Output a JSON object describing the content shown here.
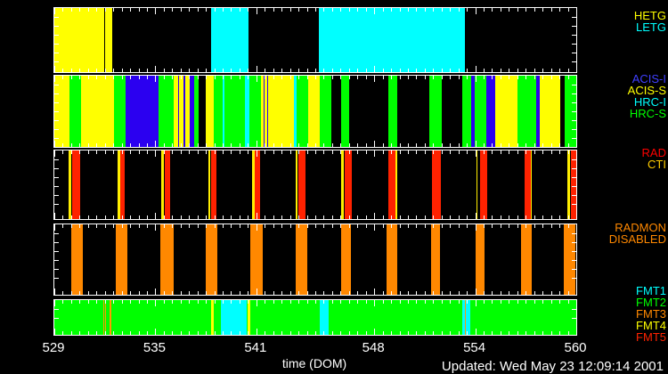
{
  "footer": {
    "updated": "Updated: Wed May 23 12:09:14 2001"
  },
  "chart_data": {
    "type": "timeline",
    "xlabel": "time (DOM)",
    "x_range": [
      529,
      560
    ],
    "x_ticks": [
      529,
      535,
      541,
      548,
      554,
      560
    ],
    "x_minor_tick_step": 0.5,
    "background": "#000000",
    "frame_color": "#ffffff",
    "bands": [
      {
        "name": "gratings",
        "labels": [
          {
            "text": "HETG",
            "color": "#ffff00"
          },
          {
            "text": "LETG",
            "color": "#00ffff"
          }
        ],
        "segments": [
          [
            529.0,
            531.97,
            "#ffff00",
            "HETG"
          ],
          [
            532.03,
            532.45,
            "#ffff00",
            "HETG"
          ],
          [
            538.33,
            540.55,
            "#00ffff",
            "LETG"
          ],
          [
            544.7,
            553.4,
            "#00ffff",
            "LETG"
          ]
        ]
      },
      {
        "name": "instruments",
        "labels": [
          {
            "text": "ACIS-I",
            "color": "#4040ff"
          },
          {
            "text": "ACIS-S",
            "color": "#ffff00"
          },
          {
            "text": "HRC-I",
            "color": "#00ffff"
          },
          {
            "text": "HRC-S",
            "color": "#00ff00"
          }
        ],
        "segments": [
          [
            529.0,
            529.9,
            "#ffff00",
            "ACIS-S"
          ],
          [
            529.9,
            530.59,
            "#00ff00",
            "HRC-S"
          ],
          [
            530.59,
            532.55,
            "#ffff00",
            "ACIS-S"
          ],
          [
            532.55,
            533.24,
            "#00ff00",
            "HRC-S"
          ],
          [
            533.24,
            535.2,
            "#2b00f0",
            "ACIS-I"
          ],
          [
            535.2,
            536.1,
            "#00ff00",
            "HRC-S"
          ],
          [
            536.1,
            536.37,
            "#ffff00",
            "ACIS-S"
          ],
          [
            536.37,
            536.43,
            "#2b00f0",
            "ACIS-I"
          ],
          [
            536.43,
            536.68,
            "#ffff00",
            "ACIS-S"
          ],
          [
            536.68,
            536.76,
            "#2b00f0",
            "ACIS-I"
          ],
          [
            536.76,
            537.05,
            "#ffff00",
            "ACIS-S"
          ],
          [
            537.05,
            537.32,
            "#2b00f0",
            "ACIS-I"
          ],
          [
            537.32,
            537.58,
            "#00ff00",
            "HRC-S"
          ],
          [
            538.01,
            538.49,
            "#ffff00",
            "ACIS-S"
          ],
          [
            538.49,
            539.02,
            "#00ff00",
            "HRC-S"
          ],
          [
            539.02,
            539.1,
            "#00ffff",
            "HRC-I"
          ],
          [
            539.1,
            540.34,
            "#00ff00",
            "HRC-S"
          ],
          [
            540.34,
            540.6,
            "#00ffff",
            "HRC-I"
          ],
          [
            540.6,
            541.29,
            "#00ff00",
            "HRC-S"
          ],
          [
            541.29,
            541.43,
            "#ffff00",
            "ACIS-S"
          ],
          [
            541.43,
            541.48,
            "#2b00f0",
            "ACIS-I"
          ],
          [
            541.48,
            541.64,
            "#ffff00",
            "ACIS-S"
          ],
          [
            541.64,
            541.69,
            "#2b00f0",
            "ACIS-I"
          ],
          [
            541.69,
            543.25,
            "#ffff00",
            "ACIS-S"
          ],
          [
            543.25,
            543.41,
            "#00ffff",
            "HRC-I"
          ],
          [
            543.41,
            544.1,
            "#00ff00",
            "HRC-S"
          ],
          [
            544.1,
            544.74,
            "#ffff00",
            "ACIS-S"
          ],
          [
            544.74,
            545.43,
            "#00ff00",
            "HRC-S"
          ],
          [
            546.06,
            546.49,
            "#00ff00",
            "HRC-S"
          ],
          [
            548.82,
            549.35,
            "#00ff00",
            "HRC-S"
          ],
          [
            551.26,
            552.0,
            "#00ff00",
            "HRC-S"
          ],
          [
            553.22,
            553.75,
            "#00ff00",
            "HRC-S"
          ],
          [
            553.75,
            553.96,
            "#2b00f0",
            "ACIS-I"
          ],
          [
            553.96,
            554.65,
            "#00ff00",
            "HRC-S"
          ],
          [
            554.65,
            555.18,
            "#2b00f0",
            "ACIS-I"
          ],
          [
            555.18,
            556.51,
            "#ffff00",
            "ACIS-S"
          ],
          [
            556.51,
            557.62,
            "#00ff00",
            "HRC-S"
          ],
          [
            557.62,
            557.81,
            "#2b00f0",
            "ACIS-I"
          ],
          [
            557.81,
            559.05,
            "#ffff00",
            "ACIS-S"
          ],
          [
            559.32,
            560.0,
            "#00ff00",
            "HRC-S"
          ]
        ]
      },
      {
        "name": "rad-cti",
        "labels": [
          {
            "text": "RAD",
            "color": "#ff0000"
          },
          {
            "text": "CTI",
            "color": "#ffcc00"
          }
        ],
        "segments": [
          [
            529.85,
            530.01,
            "#ffee00",
            "CTI"
          ],
          [
            530.06,
            530.54,
            "#ff2200",
            "RAD"
          ],
          [
            532.76,
            532.9,
            "#ffee00",
            "CTI"
          ],
          [
            532.94,
            533.2,
            "#ff2200",
            "RAD"
          ],
          [
            535.37,
            535.52,
            "#ffee00",
            "CTI"
          ],
          [
            535.56,
            535.9,
            "#ff2200",
            "RAD"
          ],
          [
            538.15,
            538.27,
            "#ffee00",
            "CTI"
          ],
          [
            538.31,
            538.61,
            "#ff2200",
            "RAD"
          ],
          [
            540.76,
            540.88,
            "#ffee00",
            "CTI"
          ],
          [
            540.92,
            541.21,
            "#ff2200",
            "RAD"
          ],
          [
            543.32,
            543.46,
            "#ffee00",
            "CTI"
          ],
          [
            543.5,
            543.94,
            "#ff2200",
            "RAD"
          ],
          [
            546.01,
            546.17,
            "#ffee00",
            "CTI"
          ],
          [
            546.27,
            546.65,
            "#ff2200",
            "RAD"
          ],
          [
            548.82,
            549.24,
            "#ff2200",
            "RAD"
          ],
          [
            549.24,
            549.35,
            "#ffee00",
            "CTI"
          ],
          [
            551.41,
            551.94,
            "#ff2200",
            "RAD"
          ],
          [
            554.06,
            554.15,
            "#ffee00",
            "CTI"
          ],
          [
            554.28,
            554.72,
            "#ff2200",
            "RAD"
          ],
          [
            556.93,
            557.3,
            "#ff2200",
            "RAD"
          ],
          [
            557.3,
            557.36,
            "#ffee00",
            "CTI"
          ],
          [
            559.48,
            559.64,
            "#ffee00",
            "CTI"
          ],
          [
            559.69,
            560.0,
            "#ff2200",
            "RAD"
          ]
        ]
      },
      {
        "name": "radmon-disabled",
        "labels": [
          {
            "text": "RADMON",
            "color": "#ff8800"
          },
          {
            "text": "DISABLED",
            "color": "#ff8800"
          }
        ],
        "segments": [
          [
            530.01,
            530.7,
            "#ff8800",
            "RADMON DISABLED"
          ],
          [
            532.66,
            533.34,
            "#ff8800",
            "RADMON DISABLED"
          ],
          [
            535.31,
            536.1,
            "#ff8800",
            "RADMON DISABLED"
          ],
          [
            538.01,
            538.7,
            "#ff8800",
            "RADMON DISABLED"
          ],
          [
            540.66,
            541.4,
            "#ff8800",
            "RADMON DISABLED"
          ],
          [
            543.32,
            544.05,
            "#ff8800",
            "RADMON DISABLED"
          ],
          [
            546.06,
            546.59,
            "#ff8800",
            "RADMON DISABLED"
          ],
          [
            548.71,
            549.35,
            "#ff8800",
            "RADMON DISABLED"
          ],
          [
            551.36,
            551.89,
            "#ff8800",
            "RADMON DISABLED"
          ],
          [
            554.01,
            554.54,
            "#ff8800",
            "RADMON DISABLED"
          ],
          [
            556.72,
            557.36,
            "#ff8800",
            "RADMON DISABLED"
          ],
          [
            559.26,
            559.95,
            "#ff8800",
            "RADMON DISABLED"
          ]
        ]
      },
      {
        "name": "telemetry-format",
        "labels": [
          {
            "text": "FMT1",
            "color": "#00ffff"
          },
          {
            "text": "FMT2",
            "color": "#00ff00"
          },
          {
            "text": "FMT3",
            "color": "#ff8800"
          },
          {
            "text": "FMT4",
            "color": "#ffff00"
          },
          {
            "text": "FMT5",
            "color": "#ff2200"
          }
        ],
        "segments": [
          [
            529.0,
            560.0,
            "#00ff00",
            "FMT2"
          ],
          [
            531.9,
            531.97,
            "#ff9900",
            "FMT3"
          ],
          [
            532.0,
            532.07,
            "#ff9900",
            "FMT3"
          ],
          [
            532.3,
            532.38,
            "#ff9900",
            "FMT3"
          ],
          [
            538.33,
            538.49,
            "#ffff00",
            "FMT4"
          ],
          [
            538.87,
            540.41,
            "#00ffff",
            "FMT1"
          ],
          [
            540.46,
            540.62,
            "#ffff00",
            "FMT4"
          ],
          [
            544.79,
            545.28,
            "#00ffff",
            "FMT1"
          ],
          [
            553.25,
            553.38,
            "#00ffff",
            "FMT1"
          ],
          [
            553.39,
            553.45,
            "#ff9900",
            "FMT3"
          ],
          [
            553.46,
            553.7,
            "#00ffff",
            "FMT1"
          ]
        ]
      }
    ]
  }
}
